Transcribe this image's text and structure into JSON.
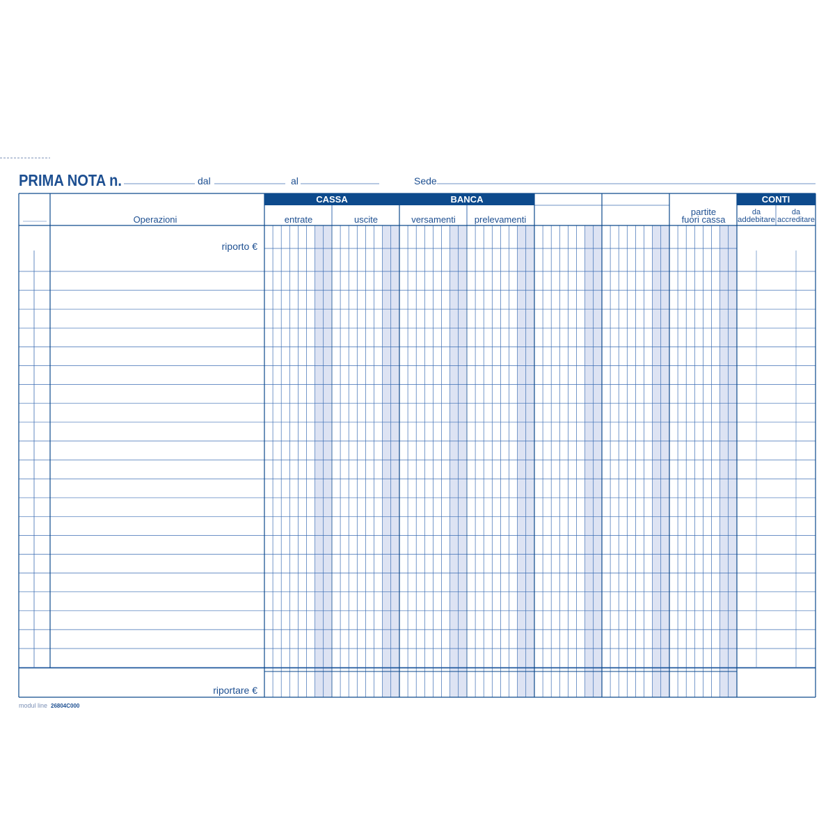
{
  "colors": {
    "ink": "#1d4f91",
    "band": "#0d4a8c",
    "grid": "#3b6db3",
    "shade": "#dde3f3"
  },
  "header": {
    "title": "PRIMA NOTA n.",
    "dal_label": "dal",
    "al_label": "al",
    "sede_label": "Sede"
  },
  "table": {
    "operazioni": "Operazioni",
    "cassa": {
      "title": "CASSA",
      "entrate": "entrate",
      "uscite": "uscite"
    },
    "banca": {
      "title": "BANCA",
      "versamenti": "versamenti",
      "prelevamenti": "prelevamenti"
    },
    "partite": {
      "line1": "partite",
      "line2": "fuori cassa"
    },
    "conti": {
      "title": "CONTI",
      "addebitare_1": "da",
      "addebitare_2": "addebitare",
      "accreditare_1": "da",
      "accreditare_2": "accreditare"
    },
    "riporto": "riporto €",
    "riportare": "riportare €"
  },
  "footer": {
    "logo": "modul line",
    "code": "26804C000"
  }
}
